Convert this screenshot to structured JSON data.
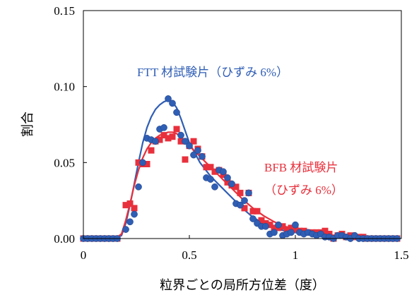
{
  "chart_data": {
    "type": "scatter",
    "xlabel": "粒界ごとの局所方位差（度）",
    "ylabel": "割合",
    "xlim": [
      0,
      1.5
    ],
    "ylim": [
      0,
      0.15
    ],
    "xticks": [
      "0",
      "0.5",
      "1",
      "1.5"
    ],
    "yticks": [
      "0.00",
      "0.05",
      "0.10",
      "0.15"
    ],
    "grid": false,
    "annotations": [
      {
        "text": "FTT 材試験片（ひずみ 6%）",
        "color": "#2f5eb5"
      },
      {
        "text": "BFB 材試験片",
        "color": "#e8303c"
      },
      {
        "text": "（ひずみ 6%）",
        "color": "#e8303c"
      }
    ],
    "series": [
      {
        "color": "#2f5eb5",
        "marker": "circle",
        "points": [
          [
            0.0,
            0.0
          ],
          [
            0.02,
            0.0
          ],
          [
            0.04,
            0.0
          ],
          [
            0.06,
            0.0
          ],
          [
            0.08,
            0.0
          ],
          [
            0.1,
            0.0
          ],
          [
            0.12,
            0.0
          ],
          [
            0.14,
            0.0
          ],
          [
            0.16,
            0.0
          ],
          [
            0.2,
            0.006
          ],
          [
            0.22,
            0.011
          ],
          [
            0.24,
            0.016
          ],
          [
            0.26,
            0.034
          ],
          [
            0.28,
            0.05
          ],
          [
            0.3,
            0.066
          ],
          [
            0.32,
            0.065
          ],
          [
            0.34,
            0.064
          ],
          [
            0.36,
            0.072
          ],
          [
            0.38,
            0.073
          ],
          [
            0.4,
            0.092
          ],
          [
            0.42,
            0.089
          ],
          [
            0.44,
            0.083
          ],
          [
            0.46,
            0.068
          ],
          [
            0.48,
            0.064
          ],
          [
            0.5,
            0.061
          ],
          [
            0.52,
            0.055
          ],
          [
            0.54,
            0.058
          ],
          [
            0.56,
            0.054
          ],
          [
            0.58,
            0.04
          ],
          [
            0.6,
            0.039
          ],
          [
            0.62,
            0.034
          ],
          [
            0.64,
            0.045
          ],
          [
            0.66,
            0.044
          ],
          [
            0.68,
            0.04
          ],
          [
            0.7,
            0.036
          ],
          [
            0.72,
            0.023
          ],
          [
            0.74,
            0.022
          ],
          [
            0.76,
            0.025
          ],
          [
            0.78,
            0.03
          ],
          [
            0.8,
            0.013
          ],
          [
            0.82,
            0.01
          ],
          [
            0.84,
            0.008
          ],
          [
            0.86,
            0.008
          ],
          [
            0.88,
            0.003
          ],
          [
            0.9,
            0.004
          ],
          [
            0.92,
            0.009
          ],
          [
            0.94,
            0.002
          ],
          [
            0.96,
            0.003
          ],
          [
            0.98,
            0.004
          ],
          [
            1.0,
            0.009
          ],
          [
            1.02,
            0.004
          ],
          [
            1.04,
            0.003
          ],
          [
            1.06,
            0.004
          ],
          [
            1.08,
            0.003
          ],
          [
            1.1,
            0.002
          ],
          [
            1.12,
            0.003
          ],
          [
            1.14,
            0.001
          ],
          [
            1.16,
            0.001
          ],
          [
            1.18,
            0.0
          ],
          [
            1.2,
            0.002
          ],
          [
            1.22,
            0.002
          ],
          [
            1.24,
            0.001
          ],
          [
            1.26,
            0.0
          ],
          [
            1.28,
            0.002
          ],
          [
            1.3,
            0.0
          ],
          [
            1.32,
            0.0
          ],
          [
            1.34,
            0.0
          ],
          [
            1.36,
            0.0
          ],
          [
            1.38,
            0.0
          ],
          [
            1.4,
            0.0
          ],
          [
            1.42,
            0.0
          ],
          [
            1.44,
            0.0
          ],
          [
            1.46,
            0.0
          ],
          [
            1.48,
            0.0
          ]
        ],
        "curve": [
          [
            0.15,
            0.0
          ],
          [
            0.18,
            0.002
          ],
          [
            0.2,
            0.01
          ],
          [
            0.22,
            0.022
          ],
          [
            0.24,
            0.036
          ],
          [
            0.26,
            0.05
          ],
          [
            0.28,
            0.063
          ],
          [
            0.3,
            0.073
          ],
          [
            0.32,
            0.08
          ],
          [
            0.34,
            0.085
          ],
          [
            0.36,
            0.088
          ],
          [
            0.38,
            0.09
          ],
          [
            0.4,
            0.091
          ],
          [
            0.42,
            0.09
          ],
          [
            0.44,
            0.086
          ],
          [
            0.46,
            0.079
          ],
          [
            0.48,
            0.071
          ],
          [
            0.5,
            0.063
          ],
          [
            0.55,
            0.05
          ],
          [
            0.6,
            0.041
          ],
          [
            0.65,
            0.034
          ],
          [
            0.7,
            0.027
          ],
          [
            0.75,
            0.02
          ],
          [
            0.8,
            0.014
          ],
          [
            0.85,
            0.01
          ],
          [
            0.9,
            0.007
          ],
          [
            0.95,
            0.005
          ],
          [
            1.0,
            0.004
          ],
          [
            1.1,
            0.002
          ],
          [
            1.2,
            0.001
          ],
          [
            1.3,
            0.0
          ],
          [
            1.4,
            0.0
          ],
          [
            1.48,
            0.0
          ]
        ]
      },
      {
        "color": "#e8303c",
        "marker": "square",
        "points": [
          [
            0.0,
            0.0
          ],
          [
            0.02,
            0.0
          ],
          [
            0.04,
            0.0
          ],
          [
            0.06,
            0.0
          ],
          [
            0.08,
            0.0
          ],
          [
            0.1,
            0.0
          ],
          [
            0.12,
            0.0
          ],
          [
            0.14,
            0.0
          ],
          [
            0.16,
            0.0
          ],
          [
            0.2,
            0.022
          ],
          [
            0.22,
            0.023
          ],
          [
            0.24,
            0.02
          ],
          [
            0.26,
            0.05
          ],
          [
            0.28,
            0.049
          ],
          [
            0.3,
            0.049
          ],
          [
            0.32,
            0.058
          ],
          [
            0.34,
            0.064
          ],
          [
            0.36,
            0.065
          ],
          [
            0.38,
            0.068
          ],
          [
            0.4,
            0.066
          ],
          [
            0.42,
            0.067
          ],
          [
            0.44,
            0.072
          ],
          [
            0.46,
            0.064
          ],
          [
            0.48,
            0.052
          ],
          [
            0.5,
            0.061
          ],
          [
            0.52,
            0.064
          ],
          [
            0.54,
            0.059
          ],
          [
            0.56,
            0.054
          ],
          [
            0.58,
            0.047
          ],
          [
            0.6,
            0.047
          ],
          [
            0.62,
            0.044
          ],
          [
            0.64,
            0.045
          ],
          [
            0.66,
            0.042
          ],
          [
            0.68,
            0.037
          ],
          [
            0.7,
            0.035
          ],
          [
            0.72,
            0.034
          ],
          [
            0.74,
            0.03
          ],
          [
            0.76,
            0.02
          ],
          [
            0.78,
            0.03
          ],
          [
            0.8,
            0.018
          ],
          [
            0.82,
            0.018
          ],
          [
            0.84,
            0.012
          ],
          [
            0.86,
            0.01
          ],
          [
            0.88,
            0.009
          ],
          [
            0.9,
            0.007
          ],
          [
            0.92,
            0.007
          ],
          [
            0.94,
            0.008
          ],
          [
            0.96,
            0.006
          ],
          [
            0.98,
            0.007
          ],
          [
            1.0,
            0.006
          ],
          [
            1.02,
            0.005
          ],
          [
            1.04,
            0.005
          ],
          [
            1.06,
            0.004
          ],
          [
            1.08,
            0.004
          ],
          [
            1.1,
            0.004
          ],
          [
            1.12,
            0.004
          ],
          [
            1.14,
            0.005
          ],
          [
            1.16,
            0.003
          ],
          [
            1.18,
            0.0
          ],
          [
            1.2,
            0.002
          ],
          [
            1.22,
            0.003
          ],
          [
            1.24,
            0.001
          ],
          [
            1.26,
            0.002
          ],
          [
            1.28,
            0.001
          ],
          [
            1.3,
            0.001
          ],
          [
            1.32,
            0.001
          ],
          [
            1.34,
            0.0
          ],
          [
            1.36,
            0.0
          ],
          [
            1.38,
            0.0
          ],
          [
            1.4,
            0.0
          ],
          [
            1.42,
            0.0
          ],
          [
            1.44,
            0.0
          ],
          [
            1.46,
            0.0
          ],
          [
            1.48,
            0.0
          ]
        ],
        "curve": [
          [
            0.15,
            0.0
          ],
          [
            0.18,
            0.003
          ],
          [
            0.2,
            0.012
          ],
          [
            0.22,
            0.023
          ],
          [
            0.24,
            0.035
          ],
          [
            0.26,
            0.045
          ],
          [
            0.28,
            0.053
          ],
          [
            0.3,
            0.059
          ],
          [
            0.32,
            0.063
          ],
          [
            0.34,
            0.066
          ],
          [
            0.36,
            0.068
          ],
          [
            0.38,
            0.069
          ],
          [
            0.4,
            0.07
          ],
          [
            0.42,
            0.07
          ],
          [
            0.44,
            0.069
          ],
          [
            0.46,
            0.067
          ],
          [
            0.48,
            0.064
          ],
          [
            0.5,
            0.061
          ],
          [
            0.55,
            0.054
          ],
          [
            0.6,
            0.047
          ],
          [
            0.65,
            0.04
          ],
          [
            0.7,
            0.033
          ],
          [
            0.75,
            0.026
          ],
          [
            0.8,
            0.02
          ],
          [
            0.85,
            0.015
          ],
          [
            0.9,
            0.011
          ],
          [
            0.95,
            0.008
          ],
          [
            1.0,
            0.006
          ],
          [
            1.1,
            0.003
          ],
          [
            1.2,
            0.002
          ],
          [
            1.3,
            0.001
          ],
          [
            1.4,
            0.0
          ],
          [
            1.48,
            0.0
          ]
        ]
      }
    ]
  }
}
